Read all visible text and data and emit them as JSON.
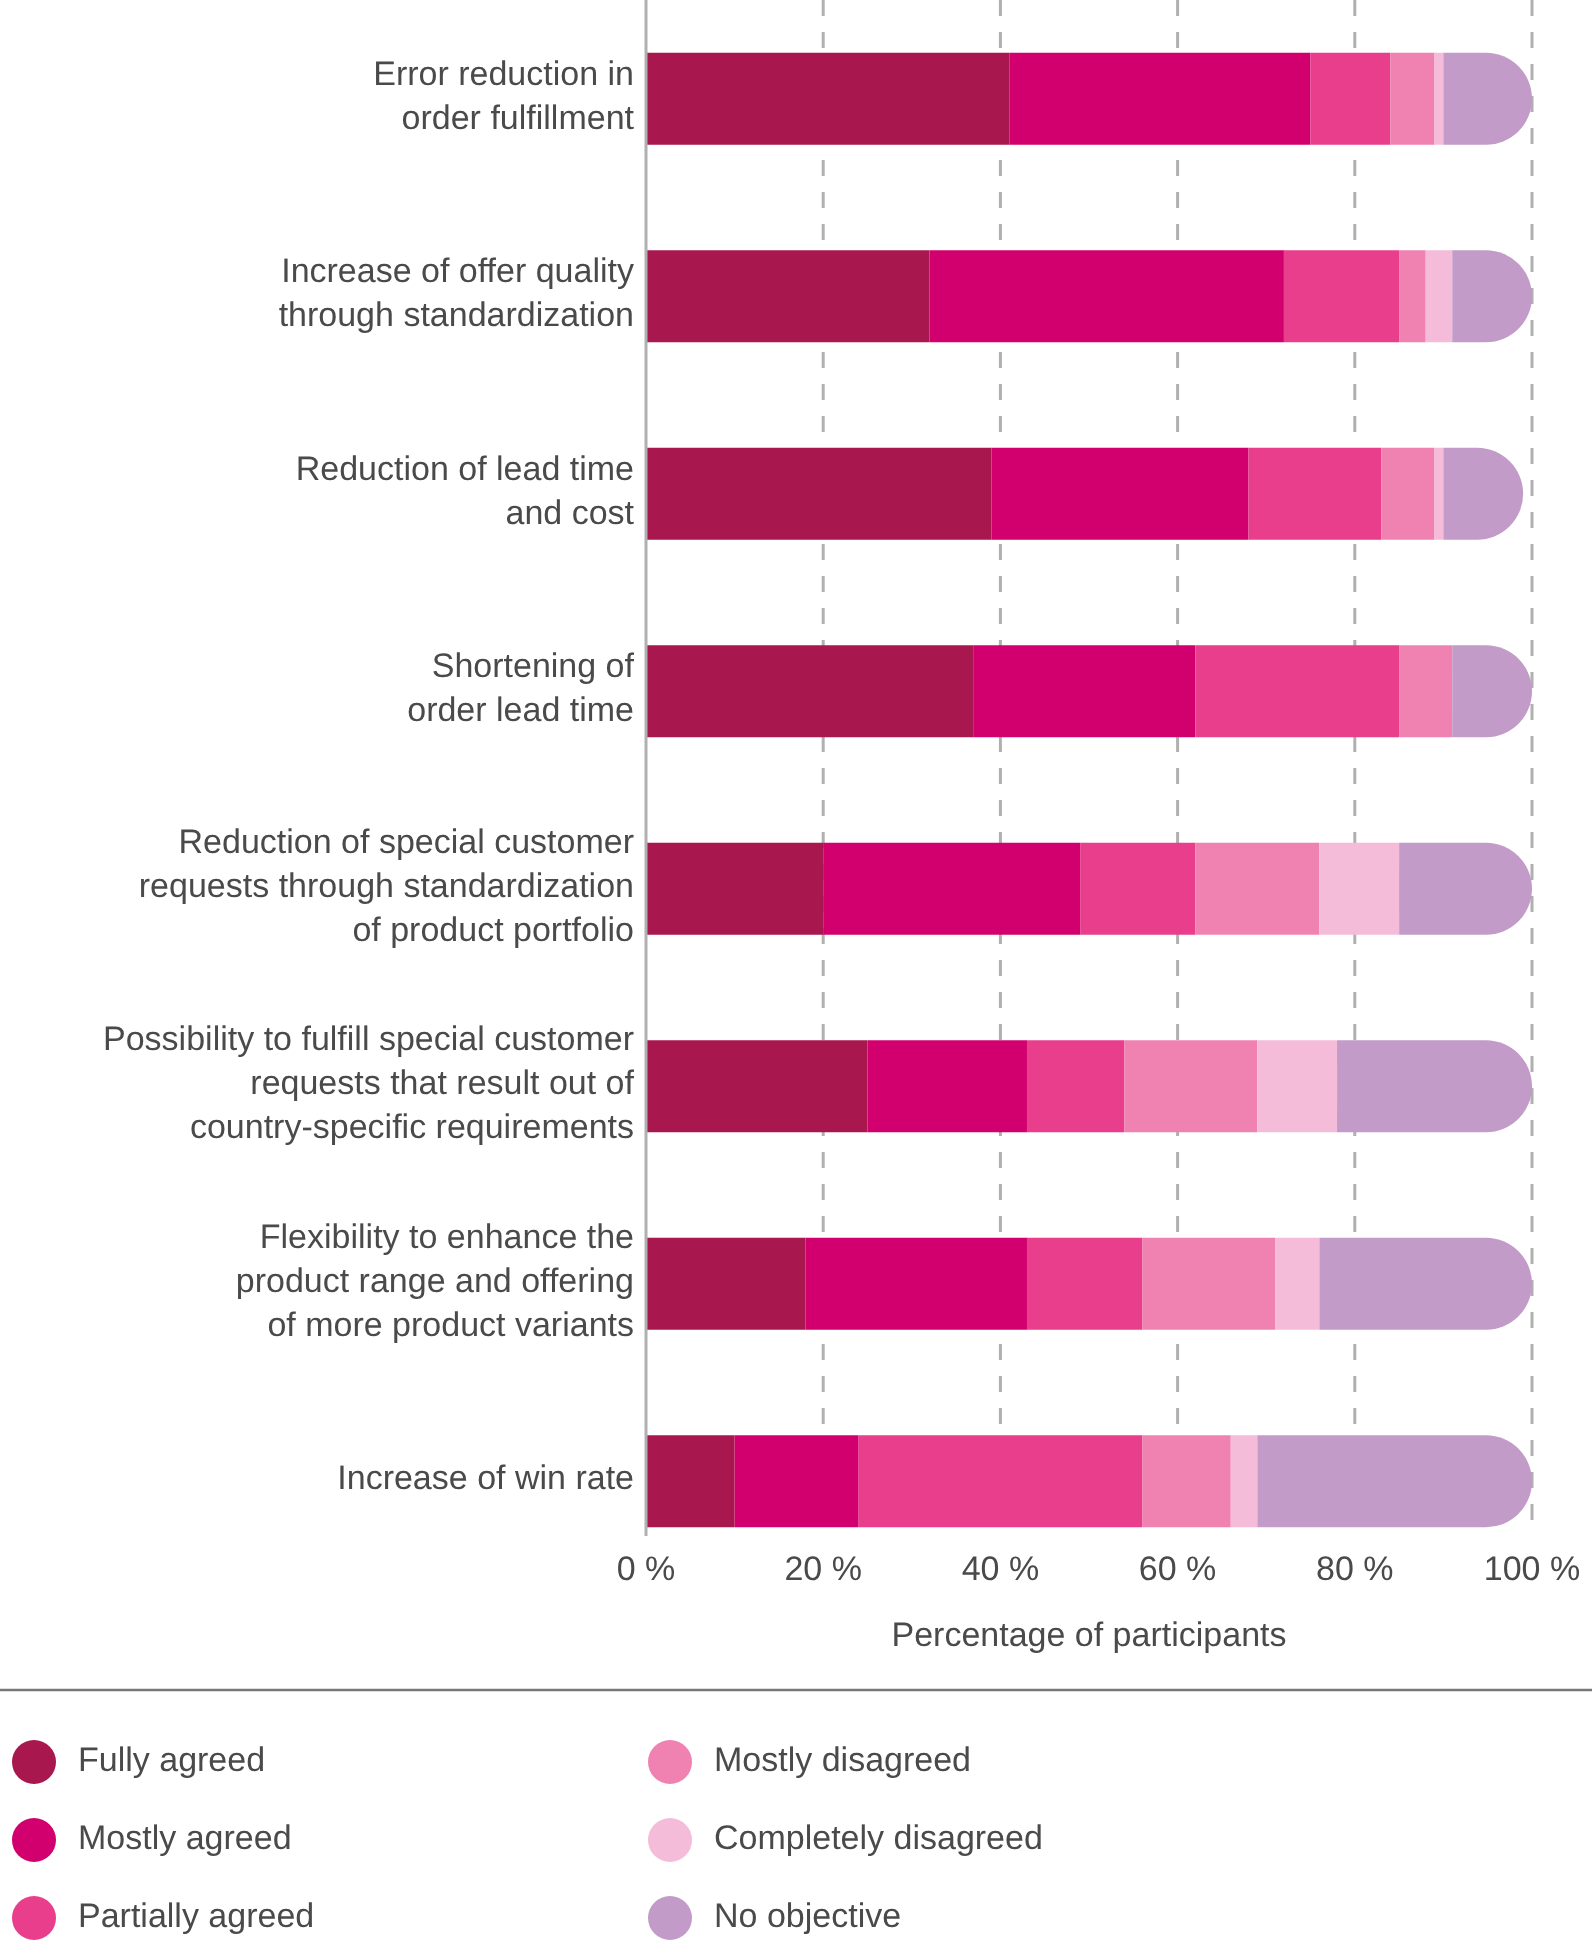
{
  "chart_data": {
    "type": "bar",
    "orientation": "horizontal",
    "stacked": true,
    "xlabel": "Percentage of participants",
    "categories": [
      "Error reduction in\norder fulfillment",
      "Increase of offer quality\nthrough standardization",
      "Reduction of lead time\nand cost",
      "Shortening of\norder lead time",
      "Reduction of special customer\nrequests through standardization\nof product portfolio",
      "Possibility to fulfill special customer\nrequests that result out of\ncountry-specific requirements",
      "Flexibility to enhance the\nproduct range and offering\nof more product variants",
      "Increase of win rate"
    ],
    "series": [
      {
        "name": "Fully agreed",
        "color": "#a8174e",
        "values": [
          41,
          32,
          39,
          37,
          20,
          25,
          18,
          10
        ]
      },
      {
        "name": "Mostly agreed",
        "color": "#d2006e",
        "values": [
          34,
          40,
          29,
          25,
          29,
          18,
          25,
          14
        ]
      },
      {
        "name": "Partially agreed",
        "color": "#e83e8c",
        "values": [
          9,
          13,
          15,
          23,
          13,
          11,
          13,
          32
        ]
      },
      {
        "name": "Mostly disagreed",
        "color": "#ef82b0",
        "values": [
          5,
          3,
          6,
          6,
          14,
          15,
          15,
          10
        ]
      },
      {
        "name": "Completely disagreed",
        "color": "#f4bcd8",
        "values": [
          1,
          3,
          1,
          0,
          9,
          9,
          5,
          3
        ]
      },
      {
        "name": "No objective",
        "color": "#c29bc8",
        "values": [
          10,
          9,
          9,
          9,
          15,
          22,
          24,
          31
        ]
      }
    ],
    "xlim": [
      0,
      100
    ],
    "xticks": [
      {
        "value": 0,
        "label": "0 %"
      },
      {
        "value": 20,
        "label": "20 %"
      },
      {
        "value": 40,
        "label": "40 %"
      },
      {
        "value": 60,
        "label": "60 %"
      },
      {
        "value": 80,
        "label": "80 %"
      },
      {
        "value": 100,
        "label": "100 %"
      }
    ],
    "grid": "x",
    "legend": "bottom"
  }
}
